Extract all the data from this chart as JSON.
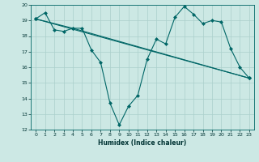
{
  "title": "",
  "xlabel": "Humidex (Indice chaleur)",
  "ylabel": "",
  "background_color": "#cce8e4",
  "grid_color": "#aacfcb",
  "line_color": "#006666",
  "xlim": [
    -0.5,
    23.5
  ],
  "ylim": [
    12,
    20
  ],
  "yticks": [
    12,
    13,
    14,
    15,
    16,
    17,
    18,
    19,
    20
  ],
  "xticks": [
    0,
    1,
    2,
    3,
    4,
    5,
    6,
    7,
    8,
    9,
    10,
    11,
    12,
    13,
    14,
    15,
    16,
    17,
    18,
    19,
    20,
    21,
    22,
    23
  ],
  "line1_x": [
    0,
    1,
    2,
    3,
    4,
    5,
    6,
    7,
    8,
    9,
    10,
    11,
    12,
    13,
    14,
    15,
    16,
    17,
    18,
    19,
    20,
    21,
    22,
    23
  ],
  "line1_y": [
    19.1,
    19.5,
    18.4,
    18.3,
    18.5,
    18.5,
    17.1,
    16.3,
    13.7,
    12.3,
    13.5,
    14.2,
    16.5,
    17.8,
    17.5,
    19.2,
    19.9,
    19.4,
    18.8,
    19.0,
    18.9,
    17.2,
    16.0,
    15.3
  ],
  "line2_x": [
    0,
    23
  ],
  "line2_y": [
    19.1,
    15.3
  ],
  "line3_x": [
    0,
    4,
    23
  ],
  "line3_y": [
    19.1,
    18.5,
    15.3
  ]
}
